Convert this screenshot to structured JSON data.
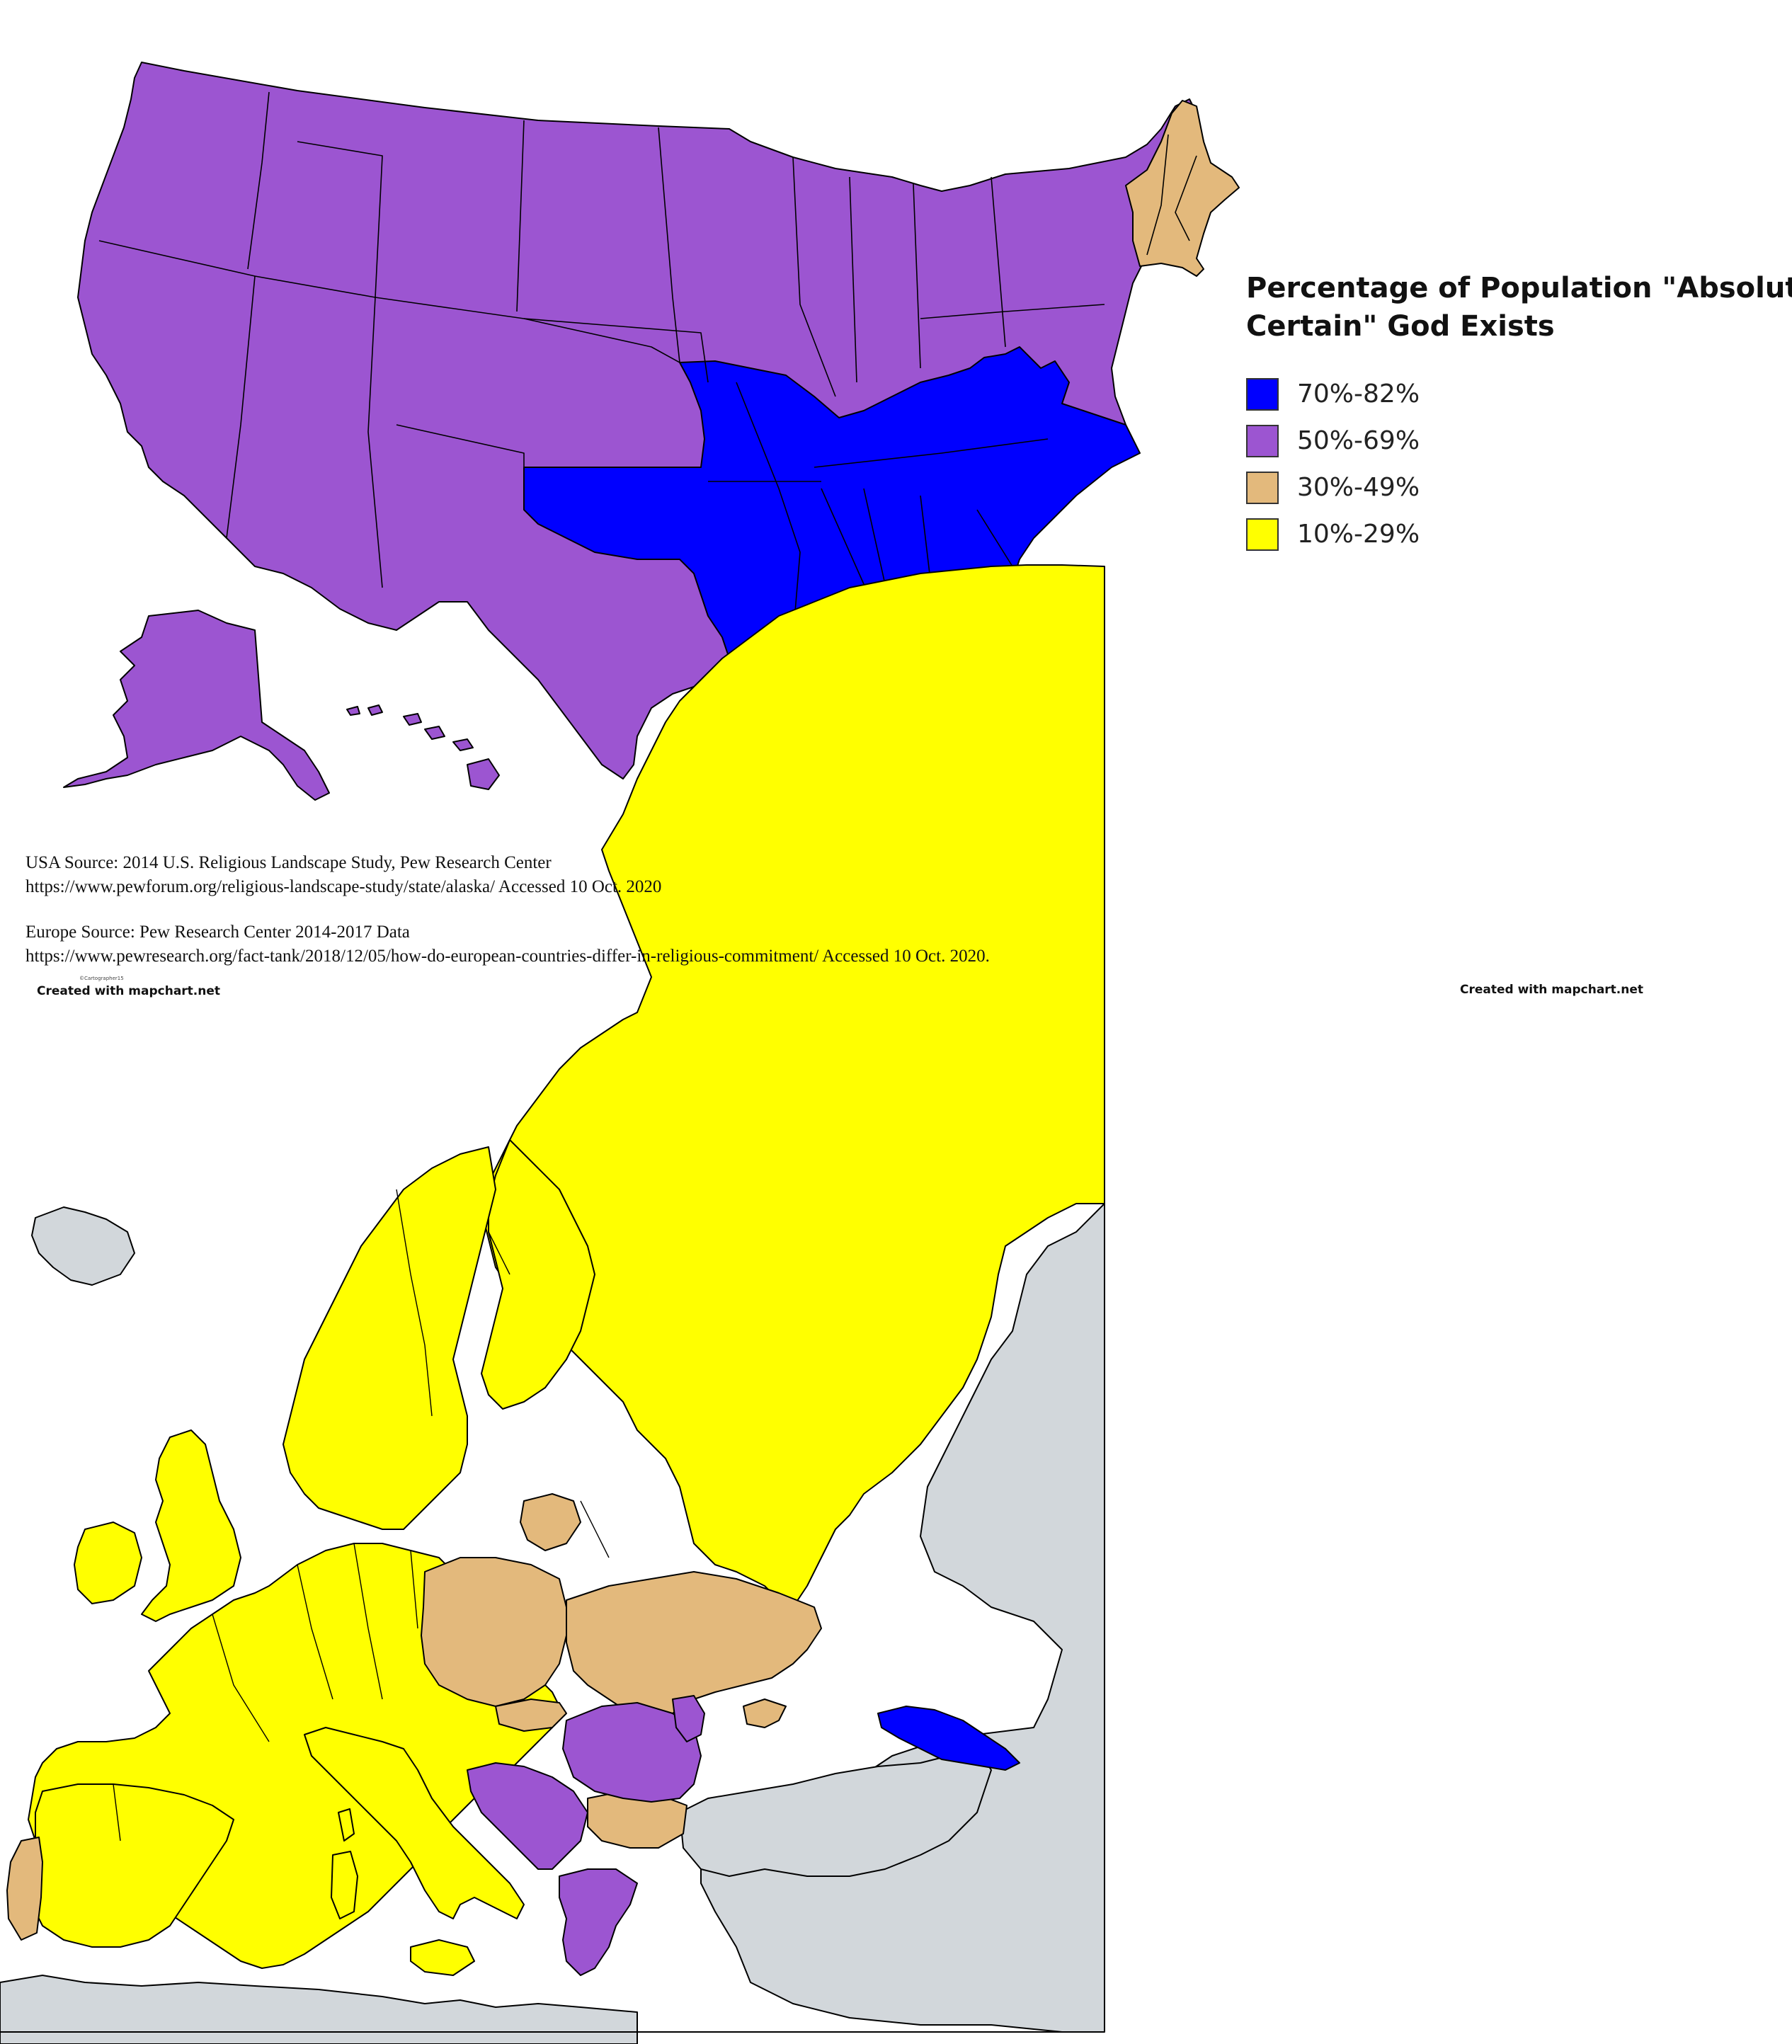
{
  "legend": {
    "title_line1": "Percentage of Population \"Absolutely",
    "title_line2": "Certain\" God Exists",
    "items": [
      {
        "label": "70%-82%",
        "color": "#0000ff"
      },
      {
        "label": "50%-69%",
        "color": "#9c55d1"
      },
      {
        "label": "30%-49%",
        "color": "#e3b97c"
      },
      {
        "label": "10%-29%",
        "color": "#ffff00"
      }
    ]
  },
  "colors": {
    "no_data": "#d2d7db",
    "border": "#000000",
    "background": "#ffffff"
  },
  "sources": {
    "usa_line1": "USA Source: 2014 U.S. Religious Landscape Study, Pew Research Center",
    "usa_line2": "https://www.pewforum.org/religious-landscape-study/state/alaska/      Accessed 10 Oct. 2020",
    "europe_line1": "Europe Source: Pew Research Center 2014-2017 Data",
    "europe_line2": "https://www.pewresearch.org/fact-tank/2018/12/05/how-do-european-countries-differ-in-religious-commitment/      Accessed 10 Oct. 2020."
  },
  "credits": {
    "left": "Created with mapchart.net",
    "right": "Created with mapchart.net",
    "watermark": "©Cartographer15"
  },
  "usa_regions": [
    {
      "name": "Deep South & Kentucky/Tennessee/West Virginia/Oklahoma/Missouri",
      "category": "70%-82%"
    },
    {
      "name": "Rest of contiguous US, Alaska, Hawaii",
      "category": "50%-69%"
    },
    {
      "name": "Northern New England",
      "category": "30%-49%"
    }
  ],
  "europe_regions": [
    {
      "name": "Georgia/Armenia",
      "category": "70%-82%"
    },
    {
      "name": "Romania, Moldova, Greece, Bosnia, Serbia, Croatia",
      "category": "50%-69%"
    },
    {
      "name": "Poland, Ukraine, Lithuania, Bulgaria, Slovakia, Portugal, Crimea",
      "category": "30%-49%"
    },
    {
      "name": "Western & Northern Europe, Russia, Italy, Spain, France",
      "category": "10%-29%"
    }
  ]
}
